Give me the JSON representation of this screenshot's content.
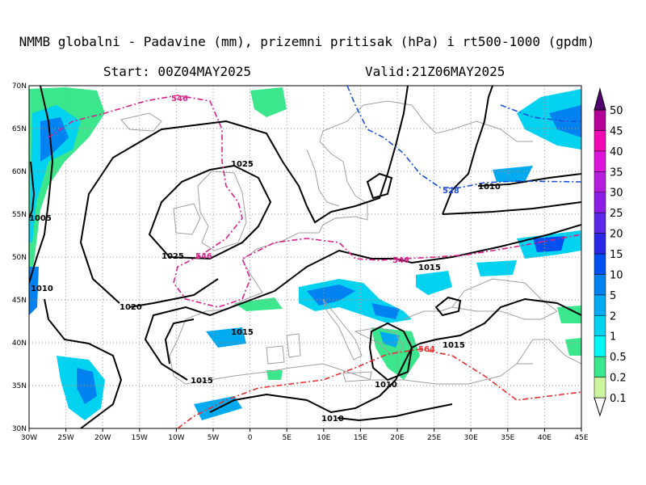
{
  "header": {
    "title": "NMMB globalni - Padavine (mm), prizemni pritisak (hPa) i rt500-1000 (gpdm)",
    "start": "Start: 00Z04MAY2025",
    "valid": "Valid:21Z06MAY2025"
  },
  "axes": {
    "x_ticks": [
      "30W",
      "25W",
      "20W",
      "15W",
      "10W",
      "5W",
      "0",
      "5E",
      "10E",
      "15E",
      "20E",
      "25E",
      "30E",
      "35E",
      "40E",
      "45E"
    ],
    "y_ticks": [
      "70N",
      "65N",
      "60N",
      "55N",
      "50N",
      "45N",
      "40N",
      "35N",
      "30N"
    ]
  },
  "colorbar": {
    "levels": [
      "0.1",
      "0.2",
      "0.5",
      "1",
      "2",
      "5",
      "10",
      "15",
      "20",
      "25",
      "30",
      "35",
      "40",
      "45",
      "50"
    ],
    "colors": [
      "#cdf5a0",
      "#3ce68c",
      "#00f5f5",
      "#00d2f0",
      "#00aaf0",
      "#0082f0",
      "#0050f0",
      "#2828e6",
      "#5a28e6",
      "#8c1ee6",
      "#b41edc",
      "#dc14dc",
      "#f00ab4",
      "#b40096",
      "#780082",
      "#50006e"
    ]
  },
  "contour_labels": {
    "pressure": [
      "1025",
      "1025",
      "1020",
      "1015",
      "1015",
      "1015",
      "1015",
      "1010",
      "1010",
      "1010",
      "1010",
      "1005"
    ],
    "thickness": [
      "546",
      "546",
      "546",
      "528",
      "564"
    ]
  },
  "colors": {
    "pressure": "#000000",
    "thick_546": "#dc1e8c",
    "thick_528": "#1e50dc",
    "thick_564": "#e63232",
    "coast": "#a0a0a0",
    "grid": "#9a9a9a"
  }
}
